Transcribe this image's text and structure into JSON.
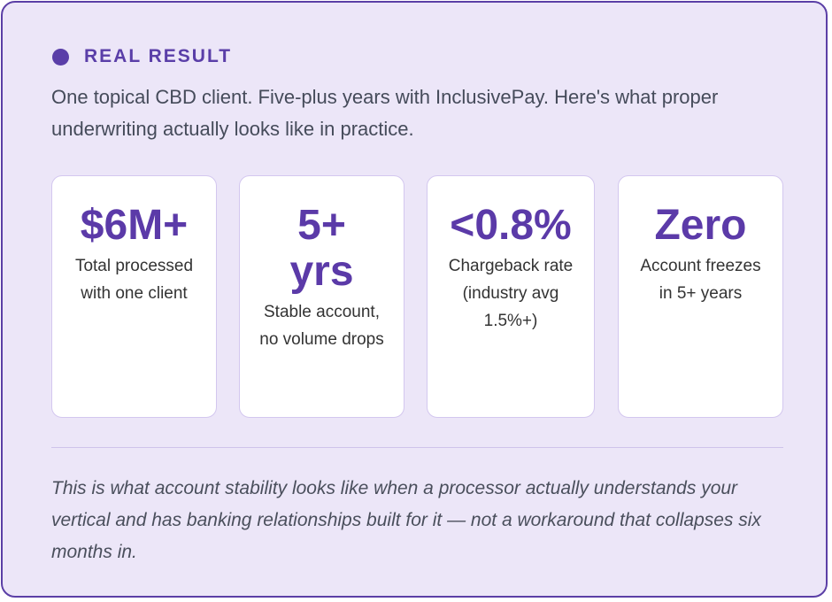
{
  "header": {
    "label": "REAL RESULT",
    "description": "One topical CBD client. Five-plus years with InclusivePay. Here's what proper underwriting actually looks like in practice."
  },
  "stats": [
    {
      "value": "$6M+",
      "label": "Total processed with one client"
    },
    {
      "value": "5+ yrs",
      "label": "Stable account, no volume drops"
    },
    {
      "value": "<0.8%",
      "label": "Chargeback rate (industry avg 1.5%+)"
    },
    {
      "value": "Zero",
      "label": "Account freezes in 5+ years"
    }
  ],
  "footnote": "This is what account stability looks like when a processor actually understands your vertical and has banking relationships built for it — not a workaround that collapses six months in."
}
